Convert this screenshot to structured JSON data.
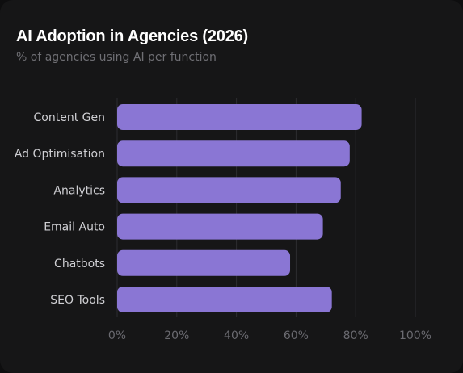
{
  "title": "AI Adoption in Agencies (2026)",
  "subtitle": "% of agencies using AI per function",
  "colors": {
    "background": "#161617",
    "bar": "#8a76d4",
    "grid": "#2c2c30",
    "title": "#ffffff",
    "subtitle": "#6f6f74",
    "category_label": "#cfcfd3",
    "tick_label": "#6a6a70"
  },
  "chart_data": {
    "type": "bar",
    "orientation": "horizontal",
    "categories": [
      "Content Gen",
      "Ad Optimisation",
      "Analytics",
      "Email Auto",
      "Chatbots",
      "SEO Tools"
    ],
    "values": [
      82,
      78,
      75,
      69,
      58,
      72
    ],
    "xlim": [
      0,
      100
    ],
    "xticks": [
      0,
      20,
      40,
      60,
      80,
      100
    ],
    "xtick_labels": [
      "0%",
      "20%",
      "40%",
      "60%",
      "80%",
      "100%"
    ],
    "grid": "vertical",
    "legend": "none"
  }
}
